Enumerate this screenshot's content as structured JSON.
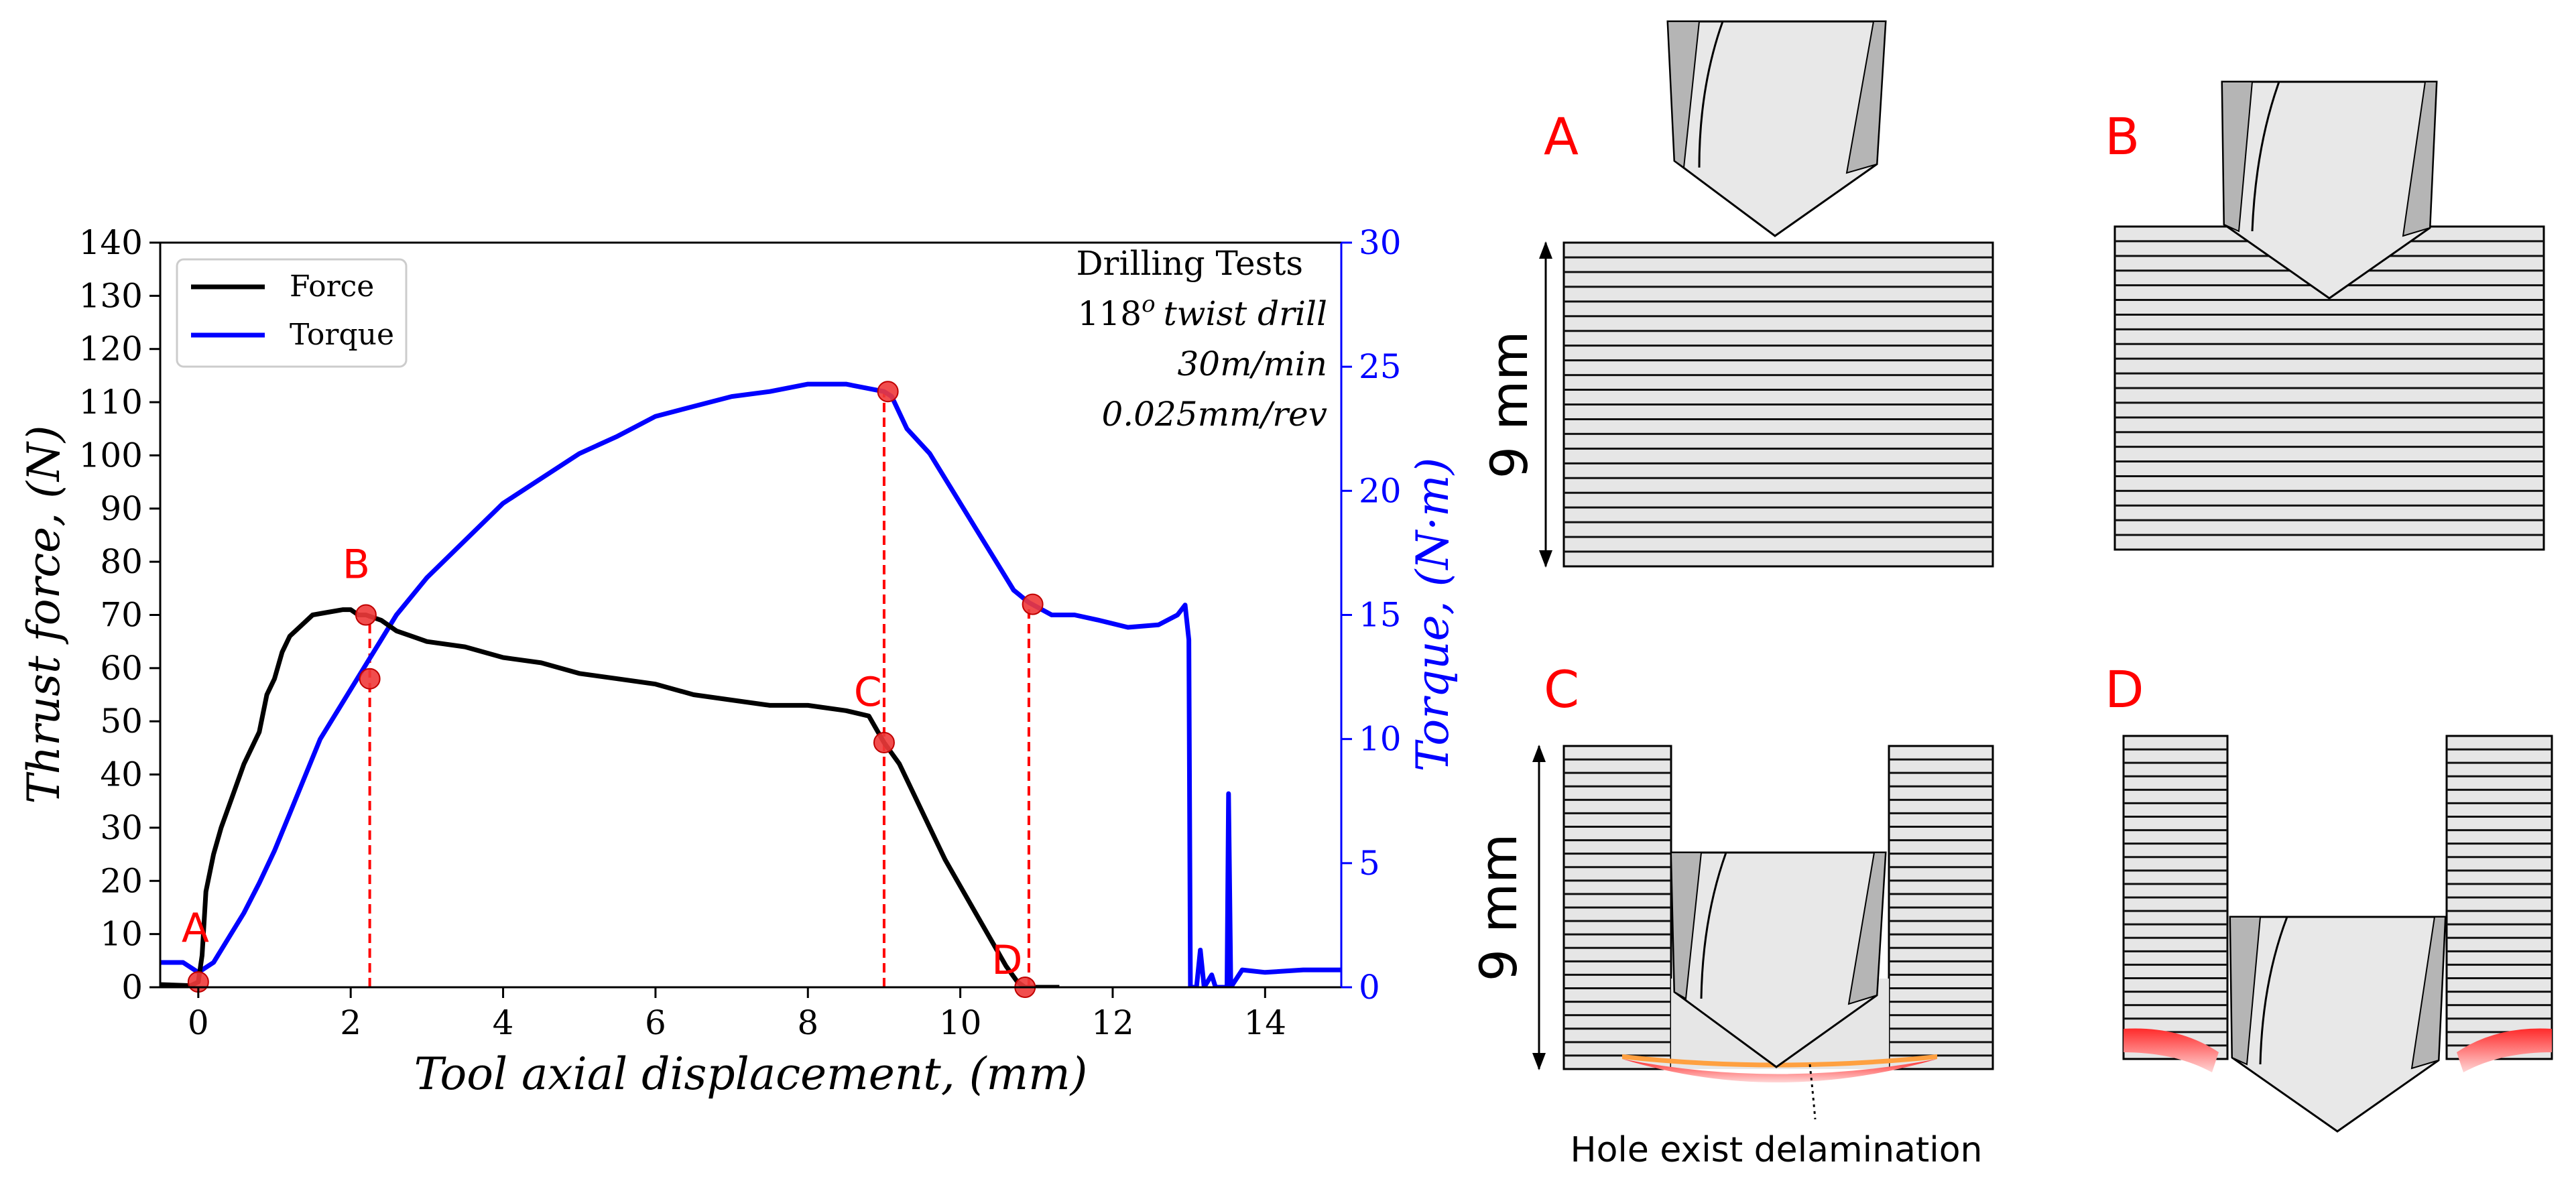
{
  "chart_data": {
    "type": "line",
    "xlabel": "Tool axial displacement, (mm)",
    "ylabel": "Thrust force, (N)",
    "y2label": "Torque, (N·m)",
    "xlim": [
      -0.5,
      15
    ],
    "ylim": [
      0,
      140
    ],
    "y2lim": [
      0,
      30
    ],
    "xticks": [
      "0",
      "2",
      "4",
      "6",
      "8",
      "10",
      "12",
      "14"
    ],
    "yticks": [
      "0",
      "10",
      "20",
      "30",
      "40",
      "50",
      "60",
      "70",
      "80",
      "90",
      "100",
      "110",
      "120",
      "130",
      "140"
    ],
    "y2ticks": [
      "0",
      "5",
      "10",
      "15",
      "20",
      "25",
      "30"
    ],
    "grid": false,
    "legend": {
      "position": "top-left",
      "entries": [
        "Force",
        "Torque"
      ]
    },
    "annotation": {
      "line1": "Drilling Tests",
      "line2_num": "118",
      "line2_sup": "o",
      "line2_rest": "twist drill",
      "line3": "30m/min",
      "line4": "0.025mm/rev"
    },
    "series": [
      {
        "name": "Force",
        "axis": "left",
        "color": "#000000",
        "points": [
          [
            -0.5,
            0.5
          ],
          [
            -0.1,
            0.3
          ],
          [
            0.0,
            1.0
          ],
          [
            0.05,
            6
          ],
          [
            0.1,
            18
          ],
          [
            0.2,
            25
          ],
          [
            0.3,
            30
          ],
          [
            0.45,
            36
          ],
          [
            0.6,
            42
          ],
          [
            0.8,
            48
          ],
          [
            0.9,
            55
          ],
          [
            1.0,
            58
          ],
          [
            1.1,
            63
          ],
          [
            1.2,
            66
          ],
          [
            1.35,
            68
          ],
          [
            1.5,
            70
          ],
          [
            1.7,
            70.5
          ],
          [
            1.9,
            71
          ],
          [
            2.0,
            71
          ],
          [
            2.1,
            70
          ],
          [
            2.2,
            70
          ],
          [
            2.4,
            69
          ],
          [
            2.6,
            67
          ],
          [
            2.8,
            66
          ],
          [
            3.0,
            65
          ],
          [
            3.5,
            64
          ],
          [
            4.0,
            62
          ],
          [
            4.5,
            61
          ],
          [
            5.0,
            59
          ],
          [
            5.5,
            58
          ],
          [
            6.0,
            57
          ],
          [
            6.5,
            55
          ],
          [
            7.0,
            54
          ],
          [
            7.5,
            53
          ],
          [
            8.0,
            53
          ],
          [
            8.5,
            52
          ],
          [
            8.8,
            51
          ],
          [
            9.0,
            46
          ],
          [
            9.2,
            42
          ],
          [
            9.4,
            36
          ],
          [
            9.6,
            30
          ],
          [
            9.8,
            24
          ],
          [
            10.0,
            19
          ],
          [
            10.2,
            14
          ],
          [
            10.4,
            9
          ],
          [
            10.6,
            4
          ],
          [
            10.75,
            1
          ],
          [
            10.85,
            0
          ],
          [
            11.0,
            0
          ],
          [
            11.3,
            0
          ]
        ]
      },
      {
        "name": "Torque",
        "axis": "right",
        "color": "#0000ff",
        "points": [
          [
            -0.5,
            1.0
          ],
          [
            -0.2,
            1.0
          ],
          [
            0.0,
            0.6
          ],
          [
            0.2,
            1.0
          ],
          [
            0.4,
            2.0
          ],
          [
            0.6,
            3.0
          ],
          [
            0.8,
            4.2
          ],
          [
            1.0,
            5.5
          ],
          [
            1.2,
            7.0
          ],
          [
            1.4,
            8.5
          ],
          [
            1.6,
            10.0
          ],
          [
            1.8,
            11.0
          ],
          [
            2.0,
            12.0
          ],
          [
            2.2,
            13.0
          ],
          [
            2.4,
            14.0
          ],
          [
            2.6,
            15.0
          ],
          [
            3.0,
            16.5
          ],
          [
            3.5,
            18.0
          ],
          [
            4.0,
            19.5
          ],
          [
            4.5,
            20.5
          ],
          [
            5.0,
            21.5
          ],
          [
            5.5,
            22.2
          ],
          [
            6.0,
            23.0
          ],
          [
            6.5,
            23.4
          ],
          [
            7.0,
            23.8
          ],
          [
            7.5,
            24.0
          ],
          [
            8.0,
            24.3
          ],
          [
            8.5,
            24.3
          ],
          [
            9.0,
            24.0
          ],
          [
            9.1,
            23.8
          ],
          [
            9.3,
            22.5
          ],
          [
            9.6,
            21.5
          ],
          [
            9.9,
            20.0
          ],
          [
            10.2,
            18.5
          ],
          [
            10.5,
            17.0
          ],
          [
            10.7,
            16.0
          ],
          [
            10.9,
            15.5
          ],
          [
            11.2,
            15.0
          ],
          [
            11.5,
            15.0
          ],
          [
            11.8,
            14.8
          ],
          [
            12.2,
            14.5
          ],
          [
            12.6,
            14.6
          ],
          [
            12.85,
            15.0
          ],
          [
            12.95,
            15.4
          ],
          [
            13.0,
            14.0
          ],
          [
            13.02,
            0
          ],
          [
            13.1,
            0
          ],
          [
            13.15,
            1.5
          ],
          [
            13.2,
            0
          ],
          [
            13.3,
            0.5
          ],
          [
            13.35,
            0
          ],
          [
            13.5,
            0
          ],
          [
            13.52,
            7.8
          ],
          [
            13.55,
            0
          ],
          [
            13.7,
            0.7
          ],
          [
            14.0,
            0.6
          ],
          [
            14.5,
            0.7
          ],
          [
            15.0,
            0.7
          ]
        ]
      }
    ],
    "markers": [
      {
        "label": "A",
        "x": 0.0,
        "y": 1
      },
      {
        "label": "B",
        "x": 2.2,
        "y": 70
      },
      {
        "label": "",
        "x": 2.25,
        "y": 58
      },
      {
        "label": "C",
        "x": 9.0,
        "y": 46
      },
      {
        "label": "",
        "x": 9.05,
        "y": 112
      },
      {
        "label": "D",
        "x": 10.85,
        "y": 0
      },
      {
        "label": "",
        "x": 10.95,
        "y": 72
      }
    ],
    "vlines": [
      2.25,
      9.0,
      10.9
    ]
  },
  "panels": {
    "a_label": "A",
    "b_label": "B",
    "c_label": "C",
    "d_label": "D",
    "dimension_label": "9 mm",
    "dimension_label_2": "9 mm",
    "delamination_note": "Hole exist delamination"
  },
  "colors": {
    "force": "#000000",
    "torque": "#0000ff",
    "marker": "#f03a3a",
    "label_red": "#ff0000",
    "laminate_fill": "#e6e6e6",
    "drill_fill": "#e8e8e8",
    "drill_dark": "#b5b5b5"
  }
}
